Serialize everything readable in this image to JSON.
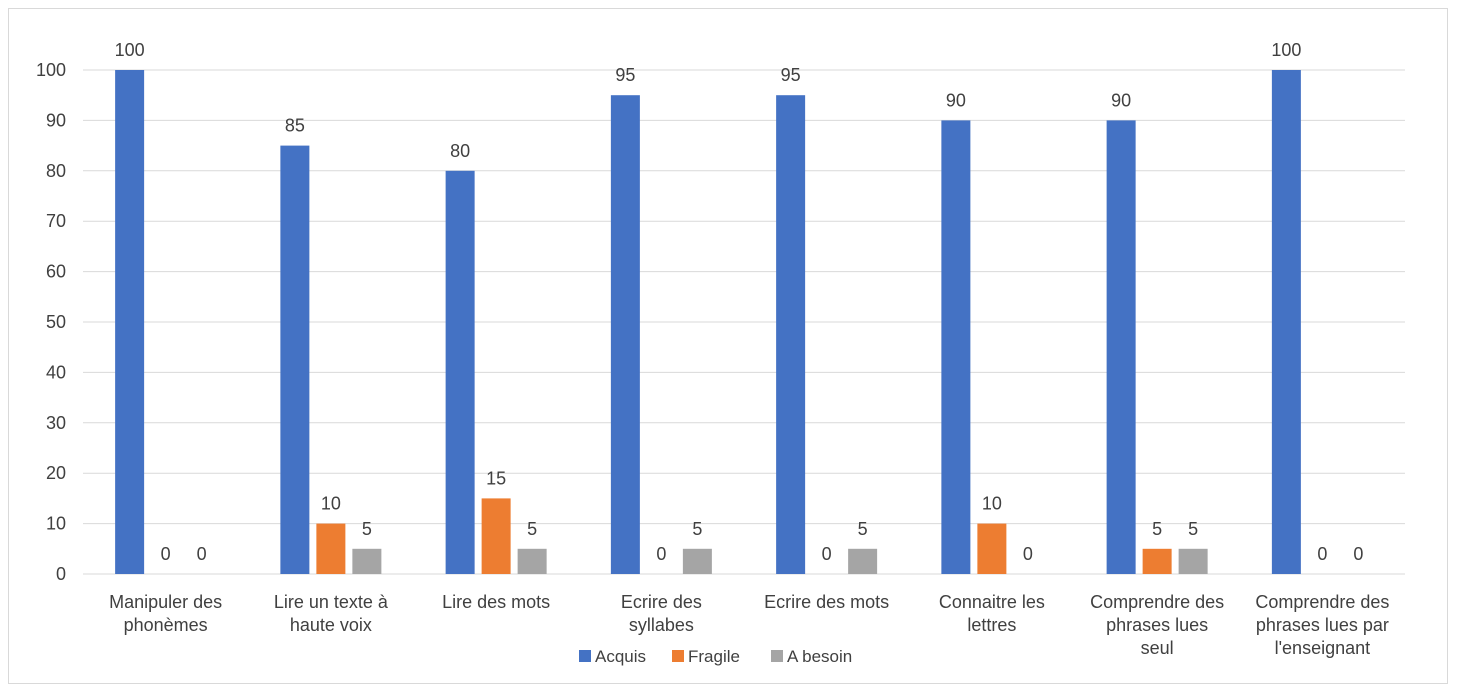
{
  "chart_data": {
    "type": "bar",
    "title": "",
    "xlabel": "",
    "ylabel": "",
    "ylim": [
      0,
      100
    ],
    "yticks": [
      0,
      10,
      20,
      30,
      40,
      50,
      60,
      70,
      80,
      90,
      100
    ],
    "grid": true,
    "legend_position": "bottom",
    "data_labels": true,
    "categories": [
      [
        "Manipuler des",
        "phonèmes"
      ],
      [
        "Lire un texte à",
        "haute voix"
      ],
      [
        "Lire des mots"
      ],
      [
        "Ecrire des",
        "syllabes"
      ],
      [
        "Ecrire des mots"
      ],
      [
        "Connaitre les",
        "lettres"
      ],
      [
        "Comprendre des",
        "phrases lues",
        "seul"
      ],
      [
        "Comprendre des",
        "phrases lues par",
        "l'enseignant"
      ]
    ],
    "series": [
      {
        "name": "Acquis",
        "color": "#4472c4",
        "values": [
          100,
          85,
          80,
          95,
          95,
          90,
          90,
          100
        ]
      },
      {
        "name": "Fragile",
        "color": "#ed7d31",
        "values": [
          0,
          10,
          15,
          0,
          0,
          10,
          5,
          0
        ]
      },
      {
        "name": "A besoin",
        "color": "#a5a5a5",
        "values": [
          0,
          5,
          5,
          5,
          5,
          0,
          5,
          0
        ]
      }
    ]
  }
}
